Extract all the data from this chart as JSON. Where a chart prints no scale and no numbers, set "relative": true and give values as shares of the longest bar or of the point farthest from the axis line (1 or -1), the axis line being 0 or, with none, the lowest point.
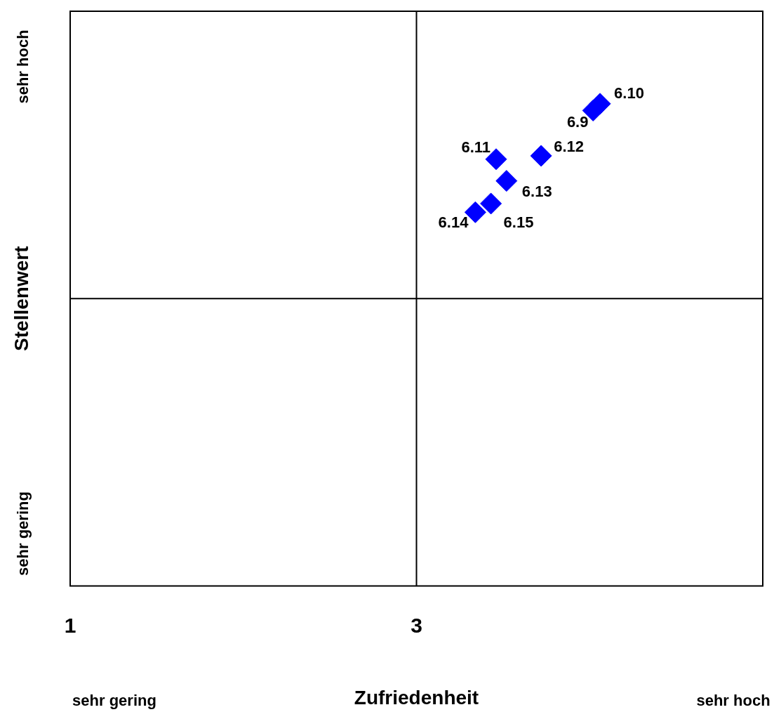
{
  "chart_data": {
    "type": "scatter",
    "xlabel": "Zufriedenheit",
    "ylabel": "Stellenwert",
    "relative": true,
    "series": [
      {
        "color": "#0000ff",
        "x": [
          4.02,
          4.06,
          3.46,
          3.72,
          3.52,
          3.34,
          3.43
        ],
        "values": [
          0.986,
          1,
          0.885,
          0.892,
          0.84,
          0.775,
          0.793
        ]
      }
    ],
    "xlim": [
      1,
      5
    ],
    "xticks": [
      1,
      3
    ],
    "legend": false,
    "marker": "diamond",
    "ref_lines": [
      {
        "axis": "x",
        "value": 3
      },
      {
        "axis": "y",
        "value": 0.596
      }
    ],
    "annotations": [
      {
        "text": "6.9",
        "x": 4.02,
        "y": 0.986
      },
      {
        "text": "6.10",
        "x": 4.06,
        "y": 1
      },
      {
        "text": "6.11",
        "x": 3.46,
        "y": 0.885
      },
      {
        "text": "6.12",
        "x": 3.72,
        "y": 0.892
      },
      {
        "text": "6.13",
        "x": 3.52,
        "y": 0.84
      },
      {
        "text": "6.14",
        "x": 3.34,
        "y": 0.775
      },
      {
        "text": "6.15",
        "x": 3.43,
        "y": 0.793
      },
      "sehr hoch",
      "sehr gering",
      "sehr gering",
      "sehr hoch"
    ]
  }
}
